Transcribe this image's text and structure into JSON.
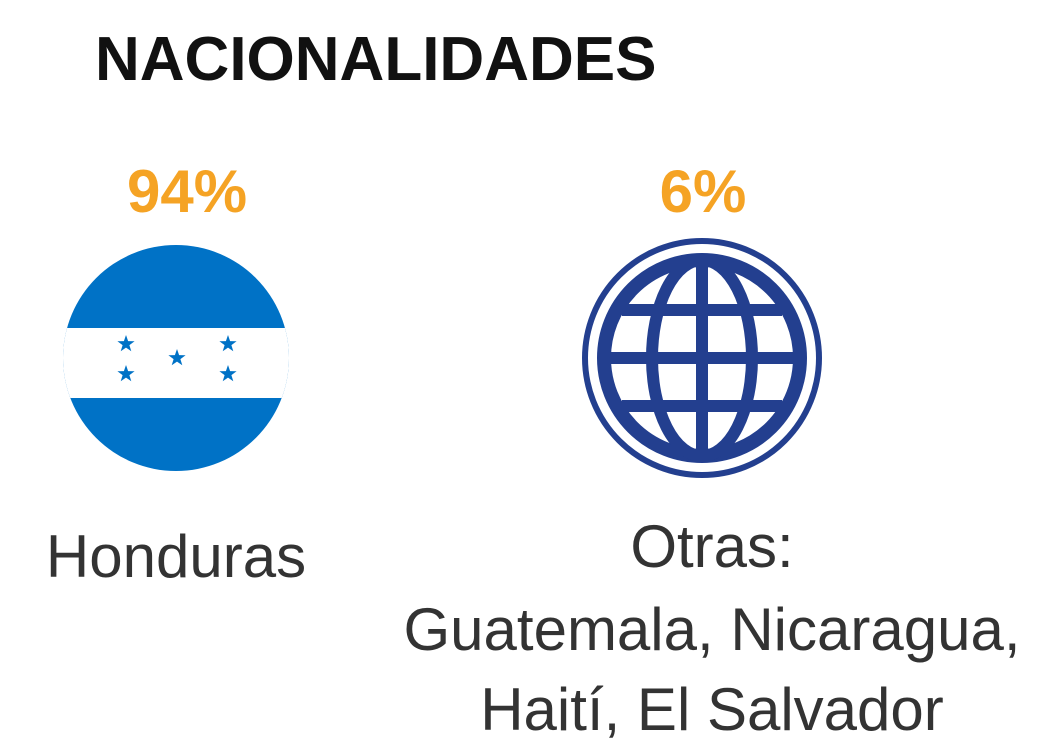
{
  "title": "NACIONALIDADES",
  "items": [
    {
      "percent": "94%",
      "label_lines": [
        "Honduras"
      ]
    },
    {
      "percent": "6%",
      "label_lines": [
        "Otras:",
        "Guatemala, Nicaragua,",
        "Haití, El Salvador"
      ]
    }
  ]
}
